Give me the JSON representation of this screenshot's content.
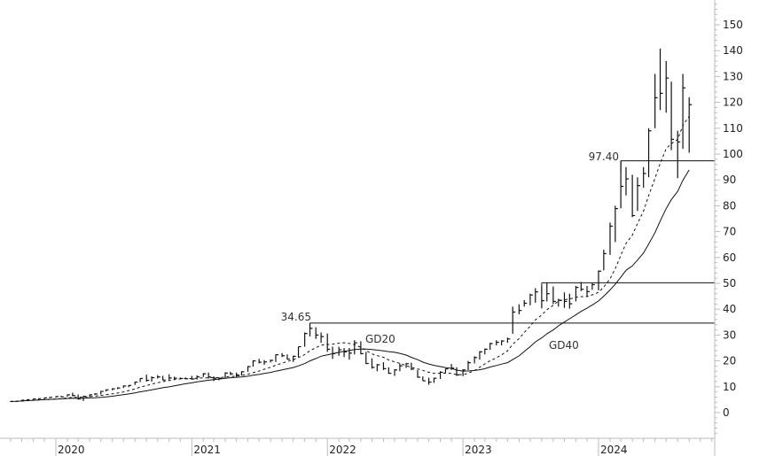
{
  "chart_data": {
    "type": "ohlc",
    "frequency_note": "",
    "ylim": [
      -10,
      160
    ],
    "y_ticks": [
      0,
      10,
      20,
      30,
      40,
      50,
      60,
      70,
      80,
      90,
      100,
      110,
      120,
      130,
      140,
      150
    ],
    "x_ticks": [
      "2020",
      "2021",
      "2022",
      "2023",
      "2024"
    ],
    "grid": false,
    "colors": {
      "bars": "#111111",
      "axis": "#bbbbbb",
      "lines": "#111111"
    },
    "bars_columns": [
      "date",
      "high",
      "low",
      "close"
    ],
    "bars": [
      [
        "2019-09-01",
        4.4,
        4.1,
        4.3
      ],
      [
        "2019-09-15",
        4.5,
        4.2,
        4.4
      ],
      [
        "2019-10-01",
        4.9,
        4.3,
        4.8
      ],
      [
        "2019-10-15",
        5.1,
        4.7,
        5.0
      ],
      [
        "2019-11-01",
        5.4,
        5.0,
        5.3
      ],
      [
        "2019-11-15",
        5.4,
        5.1,
        5.4
      ],
      [
        "2019-12-01",
        5.8,
        5.2,
        5.7
      ],
      [
        "2019-12-15",
        6.0,
        5.6,
        5.9
      ],
      [
        "2020-01-01",
        6.3,
        5.8,
        6.2
      ],
      [
        "2020-01-15",
        6.5,
        6.0,
        6.1
      ],
      [
        "2020-02-01",
        7.0,
        6.1,
        6.9
      ],
      [
        "2020-02-15",
        7.7,
        6.3,
        6.6
      ],
      [
        "2020-03-01",
        7.0,
        5.0,
        5.3
      ],
      [
        "2020-03-15",
        6.5,
        4.5,
        6.3
      ],
      [
        "2020-04-01",
        7.0,
        6.0,
        6.9
      ],
      [
        "2020-04-15",
        7.5,
        6.8,
        7.2
      ],
      [
        "2020-05-01",
        8.3,
        7.0,
        8.2
      ],
      [
        "2020-05-15",
        9.0,
        8.2,
        8.8
      ],
      [
        "2020-06-01",
        9.4,
        8.6,
        9.2
      ],
      [
        "2020-06-15",
        9.8,
        9.1,
        9.5
      ],
      [
        "2020-07-01",
        10.5,
        9.5,
        10.3
      ],
      [
        "2020-07-15",
        10.6,
        9.8,
        10.5
      ],
      [
        "2020-08-01",
        12.0,
        10.7,
        11.8
      ],
      [
        "2020-08-15",
        13.3,
        11.8,
        13.2
      ],
      [
        "2020-09-01",
        14.7,
        12.0,
        12.5
      ],
      [
        "2020-09-15",
        14.0,
        12.0,
        13.5
      ],
      [
        "2020-10-01",
        14.5,
        13.2,
        13.8
      ],
      [
        "2020-10-15",
        14.2,
        12.5,
        12.6
      ],
      [
        "2020-11-01",
        14.8,
        12.6,
        13.4
      ],
      [
        "2020-11-15",
        13.9,
        12.9,
        13.3
      ],
      [
        "2020-12-01",
        13.6,
        12.9,
        13.2
      ],
      [
        "2020-12-15",
        13.6,
        12.9,
        13.1
      ],
      [
        "2021-01-01",
        14.2,
        12.7,
        13.0
      ],
      [
        "2021-01-15",
        14.4,
        12.8,
        13.8
      ],
      [
        "2021-02-01",
        15.3,
        13.8,
        15.0
      ],
      [
        "2021-02-15",
        15.5,
        13.2,
        13.8
      ],
      [
        "2021-03-01",
        14.0,
        12.2,
        13.3
      ],
      [
        "2021-03-15",
        13.6,
        12.5,
        13.3
      ],
      [
        "2021-04-01",
        15.6,
        13.2,
        15.3
      ],
      [
        "2021-04-15",
        15.8,
        14.5,
        15.0
      ],
      [
        "2021-05-01",
        15.5,
        13.8,
        14.6
      ],
      [
        "2021-05-15",
        16.0,
        14.3,
        15.8
      ],
      [
        "2021-06-01",
        18.0,
        15.8,
        17.8
      ],
      [
        "2021-06-15",
        20.2,
        17.8,
        20.0
      ],
      [
        "2021-07-01",
        20.8,
        19.0,
        19.5
      ],
      [
        "2021-07-15",
        20.3,
        18.5,
        19.6
      ],
      [
        "2021-08-01",
        20.5,
        19.4,
        20.2
      ],
      [
        "2021-08-15",
        22.5,
        19.6,
        22.4
      ],
      [
        "2021-09-01",
        23.0,
        21.5,
        22.0
      ],
      [
        "2021-09-15",
        22.5,
        20.5,
        20.7
      ],
      [
        "2021-10-01",
        22.0,
        19.6,
        21.8
      ],
      [
        "2021-10-15",
        25.5,
        21.5,
        25.5
      ],
      [
        "2021-11-01",
        31.0,
        25.5,
        30.6
      ],
      [
        "2021-11-15",
        34.65,
        29.5,
        32.6
      ],
      [
        "2021-12-01",
        33.0,
        28.5,
        30.0
      ],
      [
        "2021-12-15",
        31.0,
        27.0,
        29.4
      ],
      [
        "2022-01-01",
        30.6,
        23.5,
        24.5
      ],
      [
        "2022-01-15",
        25.5,
        20.8,
        22.8
      ],
      [
        "2022-02-01",
        25.5,
        22.0,
        24.3
      ],
      [
        "2022-02-15",
        25.0,
        21.5,
        23.5
      ],
      [
        "2022-03-01",
        25.0,
        20.5,
        23.0
      ],
      [
        "2022-03-15",
        28.0,
        22.5,
        27.0
      ],
      [
        "2022-04-01",
        27.6,
        22.5,
        22.8
      ],
      [
        "2022-04-15",
        23.5,
        18.8,
        19.0
      ],
      [
        "2022-05-01",
        21.0,
        17.0,
        17.5
      ],
      [
        "2022-05-15",
        18.8,
        16.0,
        18.5
      ],
      [
        "2022-06-01",
        19.5,
        16.5,
        17.0
      ],
      [
        "2022-06-15",
        17.5,
        15.0,
        15.2
      ],
      [
        "2022-07-01",
        16.8,
        14.2,
        16.5
      ],
      [
        "2022-07-15",
        19.0,
        16.0,
        18.1
      ],
      [
        "2022-08-01",
        19.2,
        17.3,
        18.9
      ],
      [
        "2022-08-15",
        19.3,
        16.5,
        16.8
      ],
      [
        "2022-09-01",
        16.5,
        13.5,
        13.7
      ],
      [
        "2022-09-15",
        14.0,
        12.3,
        12.3
      ],
      [
        "2022-10-01",
        13.5,
        10.8,
        11.8
      ],
      [
        "2022-10-15",
        13.5,
        11.5,
        13.3
      ],
      [
        "2022-11-01",
        16.0,
        13.0,
        15.6
      ],
      [
        "2022-11-15",
        17.0,
        15.3,
        16.9
      ],
      [
        "2022-12-01",
        18.8,
        16.5,
        17.2
      ],
      [
        "2022-12-15",
        17.5,
        14.2,
        14.6
      ],
      [
        "2023-01-01",
        16.8,
        14.1,
        16.5
      ],
      [
        "2023-01-15",
        20.0,
        16.4,
        19.3
      ],
      [
        "2023-02-01",
        21.8,
        19.0,
        21.3
      ],
      [
        "2023-02-15",
        23.8,
        20.5,
        23.5
      ],
      [
        "2023-03-01",
        24.8,
        22.5,
        24.5
      ],
      [
        "2023-03-15",
        27.0,
        24.3,
        26.7
      ],
      [
        "2023-04-01",
        28.0,
        26.0,
        27.2
      ],
      [
        "2023-04-15",
        28.0,
        26.0,
        27.7
      ],
      [
        "2023-05-01",
        29.0,
        27.0,
        28.5
      ],
      [
        "2023-05-15",
        41.0,
        30.5,
        38.9
      ],
      [
        "2023-06-01",
        41.9,
        38.0,
        39.5
      ],
      [
        "2023-06-15",
        43.5,
        41.0,
        42.3
      ],
      [
        "2023-07-01",
        46.0,
        41.5,
        45.5
      ],
      [
        "2023-07-15",
        48.1,
        42.5,
        46.7
      ],
      [
        "2023-08-01",
        49.0,
        40.3,
        43.3
      ],
      [
        "2023-08-15",
        50.2,
        43.0,
        46.0
      ],
      [
        "2023-09-01",
        48.8,
        42.0,
        43.0
      ],
      [
        "2023-09-15",
        44.0,
        41.0,
        43.5
      ],
      [
        "2023-10-01",
        46.5,
        40.5,
        43.0
      ],
      [
        "2023-10-15",
        46.0,
        40.2,
        42.1
      ],
      [
        "2023-11-01",
        49.0,
        43.0,
        48.4
      ],
      [
        "2023-11-15",
        50.5,
        47.0,
        47.7
      ],
      [
        "2023-12-01",
        49.0,
        45.0,
        46.8
      ],
      [
        "2023-12-15",
        50.0,
        47.5,
        49.5
      ],
      [
        "2024-01-01",
        55.0,
        47.3,
        54.7
      ],
      [
        "2024-01-15",
        63.0,
        55.0,
        61.5
      ],
      [
        "2024-02-01",
        73.5,
        61.0,
        72.1
      ],
      [
        "2024-02-15",
        80.0,
        66.0,
        78.9
      ],
      [
        "2024-03-01",
        97.4,
        79.0,
        87.5
      ],
      [
        "2024-03-15",
        95.0,
        84.0,
        90.4
      ],
      [
        "2024-04-01",
        92.0,
        75.6,
        76.2
      ],
      [
        "2024-04-15",
        91.0,
        78.0,
        87.8
      ],
      [
        "2024-05-01",
        95.0,
        87.0,
        92.5
      ],
      [
        "2024-05-15",
        110.0,
        91.0,
        109.0
      ],
      [
        "2024-06-01",
        131.0,
        110.0,
        121.8
      ],
      [
        "2024-06-15",
        140.8,
        117.0,
        123.5
      ],
      [
        "2024-07-01",
        136.0,
        116.0,
        129.4
      ],
      [
        "2024-07-15",
        128.0,
        101.5,
        105.7
      ],
      [
        "2024-08-01",
        109.0,
        90.7,
        104.7
      ],
      [
        "2024-08-15",
        131.0,
        102.0,
        125.6
      ],
      [
        "2024-09-01",
        122.0,
        100.5,
        119.1
      ]
    ],
    "moving_averages": [
      {
        "name": "GD20",
        "period_weeks": 20,
        "style": "dashed"
      },
      {
        "name": "GD40",
        "period_weeks": 40,
        "style": "solid"
      }
    ],
    "levels": [
      {
        "label": "34.65",
        "value": 34.65,
        "from": "2021-11-15"
      },
      {
        "label": "",
        "value": 50.2,
        "from": "2023-08-01"
      },
      {
        "label": "97.40",
        "value": 97.4,
        "from": "2024-03-01"
      }
    ]
  }
}
